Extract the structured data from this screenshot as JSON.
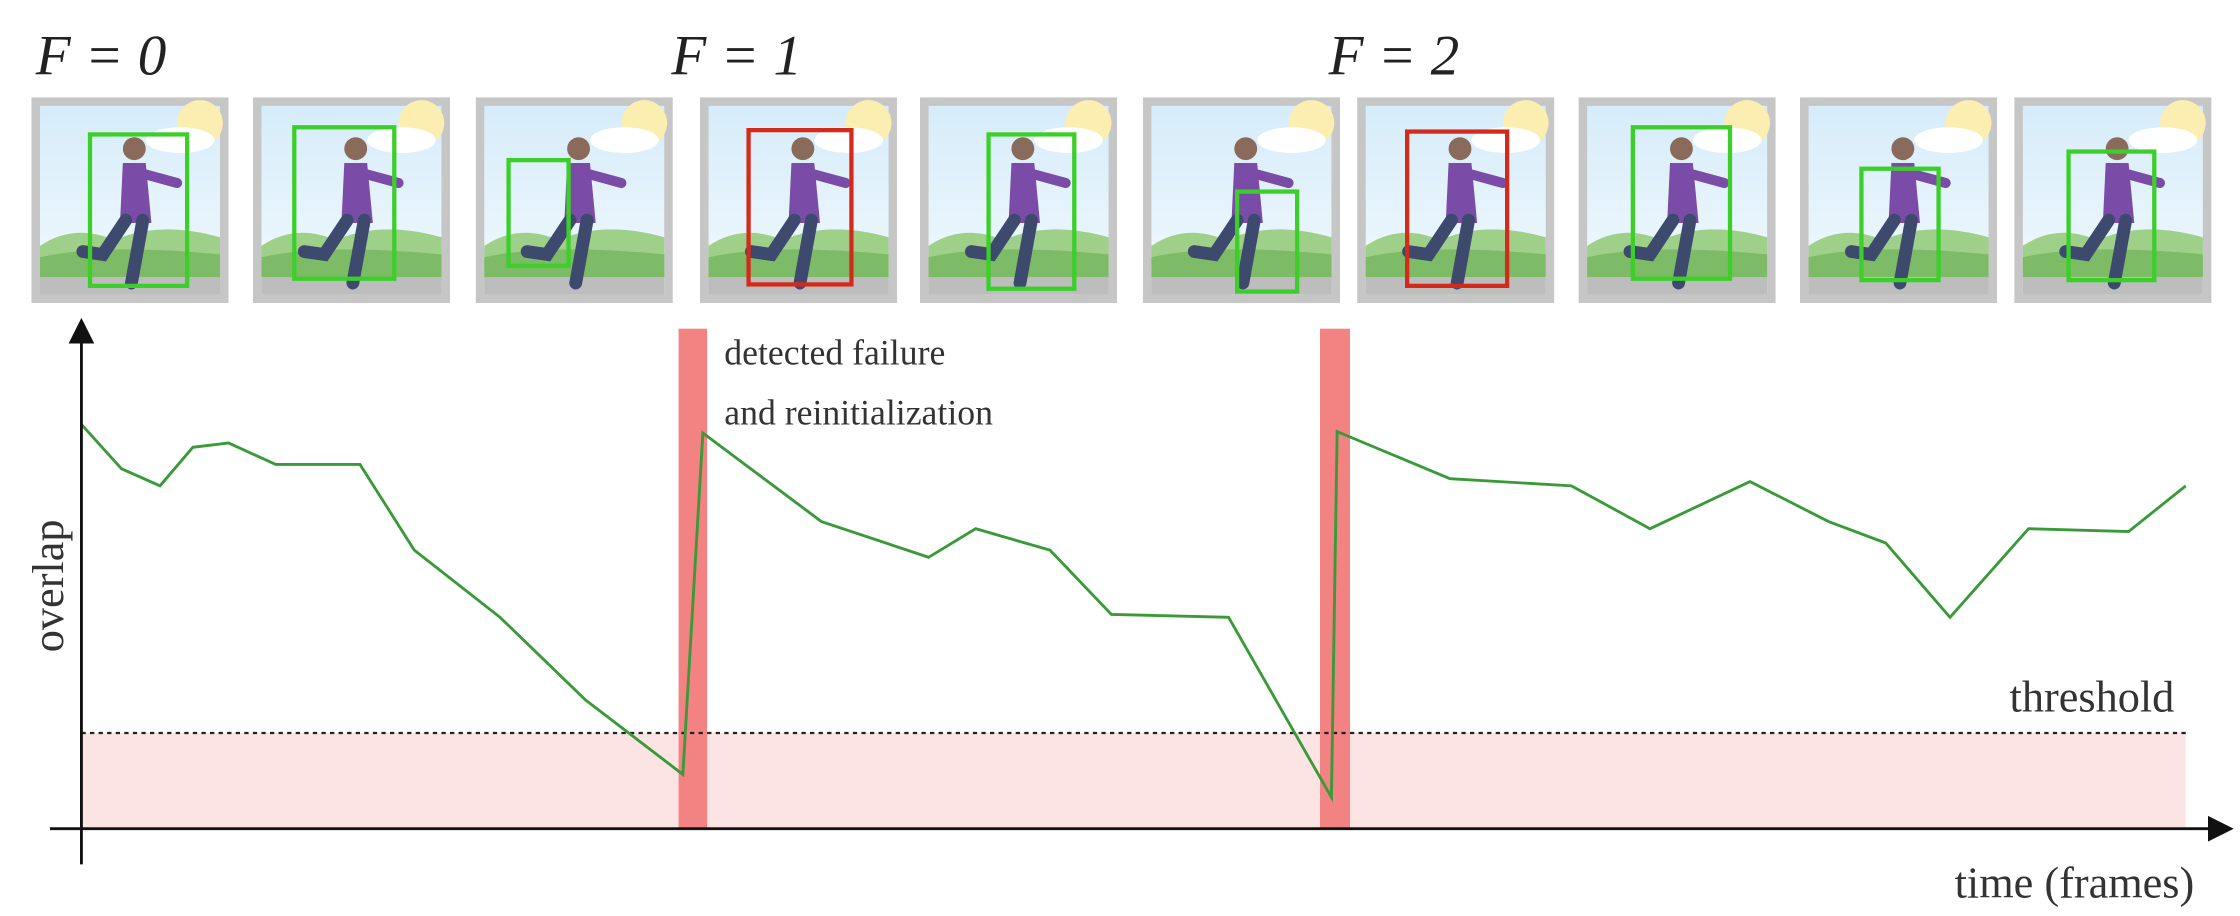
{
  "frame_labels": [
    "F = 0",
    "F = 1",
    "F = 2"
  ],
  "annotation": {
    "lines": [
      "detected failure",
      "and reinitialization"
    ]
  },
  "threshold": "threshold",
  "axes": {
    "y_label": "overlap",
    "x_label": "time (frames)"
  }
}
